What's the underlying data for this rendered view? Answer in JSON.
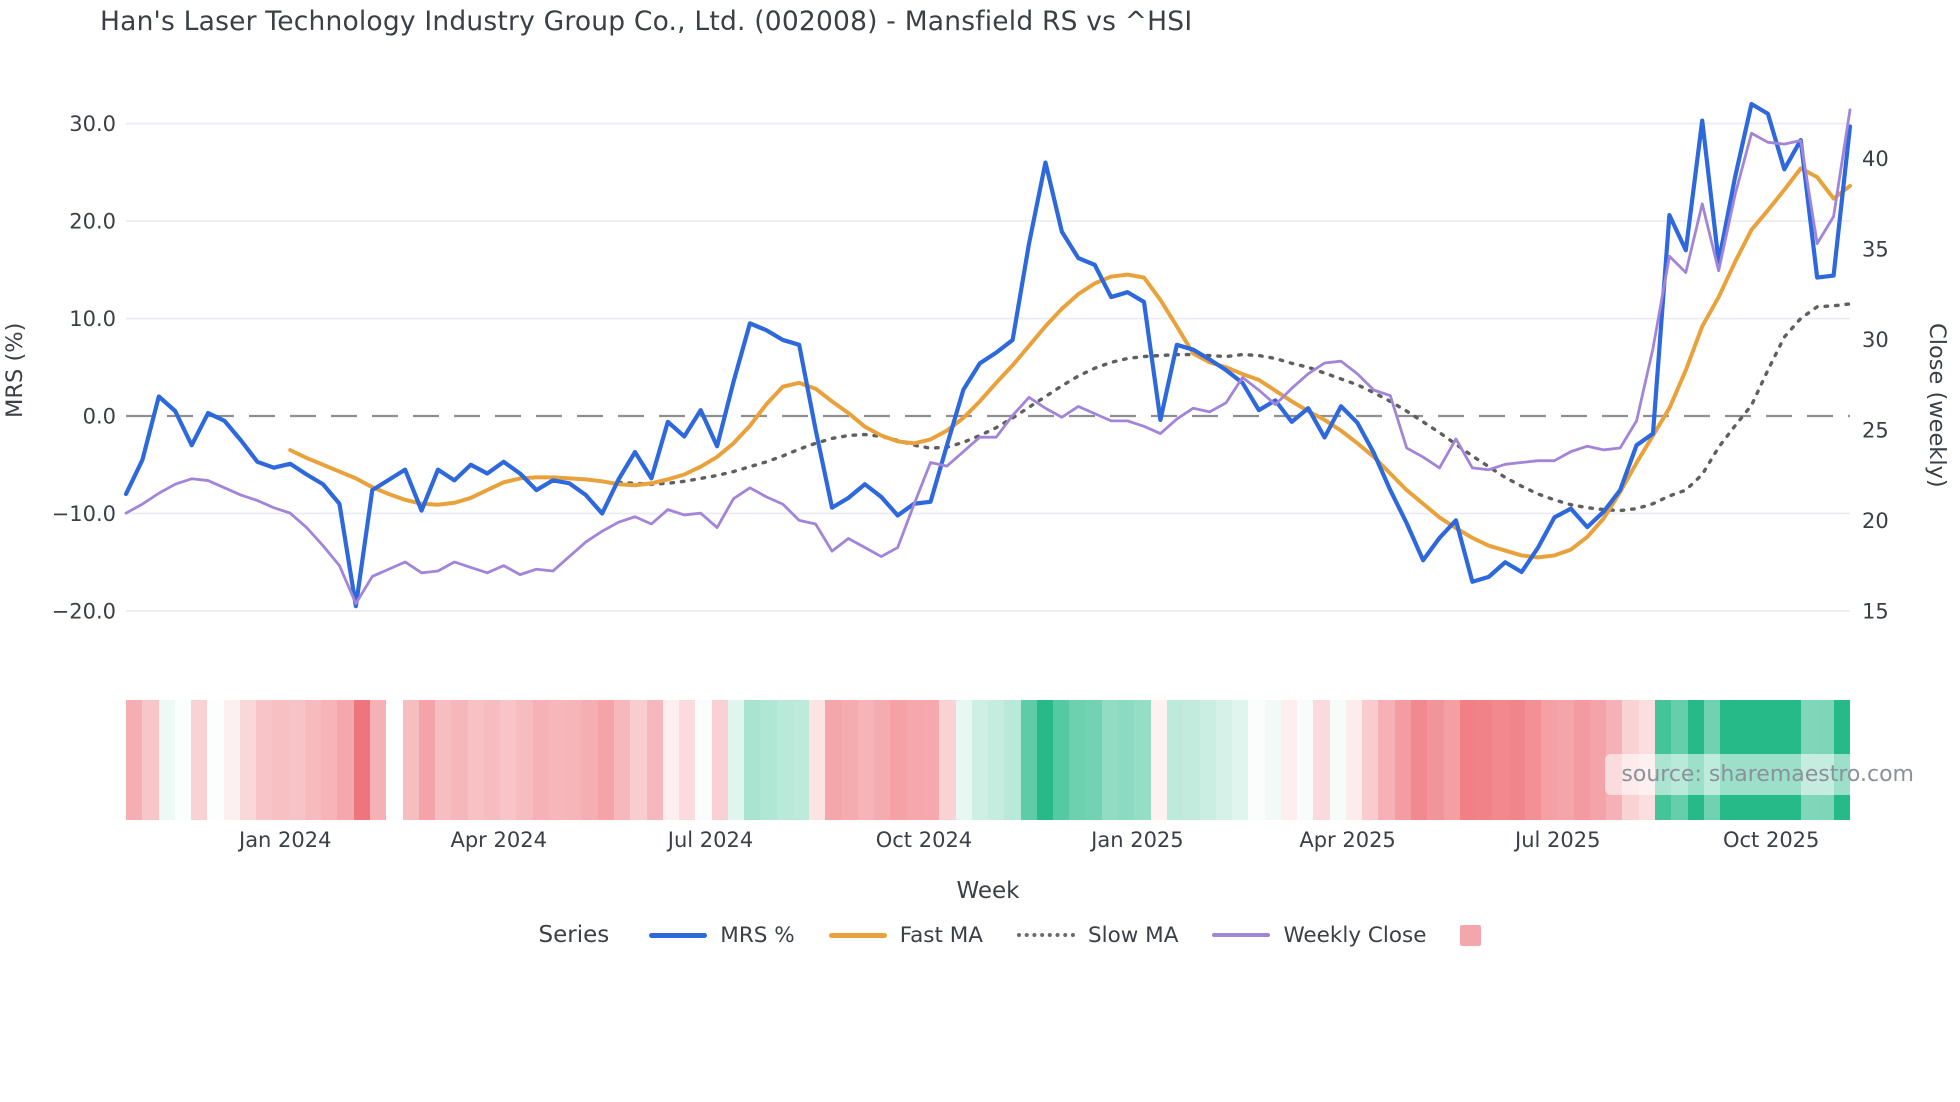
{
  "title": "Han's Laser Technology Industry Group Co., Ltd. (002008) - Mansfield RS vs ^HSI",
  "source": "source: sharemaestro.com",
  "legend": {
    "title": "Series",
    "entries": [
      {
        "label": "MRS %",
        "swatch": "line",
        "color": "#2d68dd",
        "thickness": 5
      },
      {
        "label": "Fast MA",
        "swatch": "line",
        "color": "#e9a23b",
        "thickness": 5
      },
      {
        "label": "Slow MA",
        "swatch": "dotted",
        "color": "#6b6b6b",
        "thickness": 4
      },
      {
        "label": "Weekly Close",
        "swatch": "line",
        "color": "#a284d8",
        "thickness": 3.5
      },
      {
        "label": "",
        "swatch": "square",
        "color": "#f3a6ab",
        "thickness": 0
      }
    ]
  },
  "chart_data": {
    "type": "line",
    "title": "Han's Laser Technology Industry Group Co., Ltd. (002008) - Mansfield RS vs ^HSI",
    "xlabel": "Week",
    "ylabel_left": "MRS (%)",
    "ylabel_right": "Close (weekly)",
    "n_weeks": 106,
    "x_tick_labels": [
      "Jan 2024",
      "Apr 2024",
      "Jul 2024",
      "Oct 2024",
      "Jan 2025",
      "Apr 2025",
      "Jul 2025",
      "Oct 2025"
    ],
    "x_tick_weeks": [
      9.7,
      22.7,
      35.6,
      48.6,
      61.6,
      74.4,
      87.2,
      100.2
    ],
    "left_ticks": [
      {
        "v": 30,
        "label": "30.0"
      },
      {
        "v": 20,
        "label": "20.0"
      },
      {
        "v": 10,
        "label": "10.0"
      },
      {
        "v": 0,
        "label": "0.0"
      },
      {
        "v": -10,
        "label": "−10.0"
      },
      {
        "v": -20,
        "label": "−20.0"
      }
    ],
    "right_ticks": [
      {
        "v": 40,
        "label": "40"
      },
      {
        "v": 35,
        "label": "35"
      },
      {
        "v": 30,
        "label": "30"
      },
      {
        "v": 25,
        "label": "25"
      },
      {
        "v": 20,
        "label": "20"
      },
      {
        "v": 15,
        "label": "15"
      }
    ],
    "ylim_left": [
      -23,
      33.5
    ],
    "right_axis_map": {
      "right_value_at_left_zero": 25.77,
      "right_units_per_left_unit": 0.539
    },
    "zero_line_left": 0,
    "grid": true,
    "legend_position": "bottom",
    "colors": {
      "grid": "#ebebf3",
      "zero_line": "#8f8f8f",
      "text": "#3a4045",
      "watermark": "#8b919a",
      "heat_positive": "#26ba89",
      "heat_negative": "#ee737a"
    },
    "series": [
      {
        "name": "MRS %",
        "axis": "left",
        "color": "#2d68dd",
        "style": "solid",
        "width": 4.2,
        "values": [
          -8,
          -4.5,
          2,
          0.5,
          -3,
          0.3,
          -0.5,
          -2.5,
          -4.7,
          -5.3,
          -4.9,
          -6,
          -7,
          -9,
          -19.5,
          -7.6,
          null,
          -5.5,
          -9.7,
          -5.5,
          -6.6,
          -5,
          -5.9,
          -4.7,
          -5.9,
          -7.6,
          -6.6,
          -6.9,
          -8.1,
          -10,
          -6.5,
          -3.7,
          -6.4,
          -0.6,
          -2.1,
          0.6,
          -3.1,
          3.5,
          9.5,
          8.8,
          7.8,
          7.3,
          -1.4,
          -9.4,
          -8.4,
          -7,
          -8.3,
          -10.2,
          -9,
          -8.8,
          -3,
          2.7,
          5.4,
          6.5,
          7.8,
          17.7,
          26,
          18.9,
          16.2,
          15.5,
          12.2,
          12.7,
          11.7,
          -0.4,
          7.3,
          6.8,
          5.8,
          4.7,
          3.4,
          0.6,
          1.6,
          -0.6,
          0.8,
          -2.2,
          1,
          -0.7,
          -3.8,
          -7.6,
          -11,
          -14.8,
          -12.5,
          -10.7,
          -17,
          -16.5,
          -15,
          -16,
          -13.5,
          -10.4,
          -9.5,
          -11.4,
          -9.8,
          -7.6,
          -3,
          -1.8,
          20.6,
          17,
          30.3,
          15.8,
          24.5,
          32,
          31,
          25.3,
          28.3,
          14.2,
          14.4,
          29.7
        ]
      },
      {
        "name": "Fast MA",
        "axis": "left",
        "color": "#e9a23b",
        "style": "solid",
        "width": 4,
        "values": [
          null,
          null,
          null,
          null,
          null,
          null,
          null,
          null,
          null,
          null,
          -3.5,
          -4.3,
          -5,
          -5.7,
          -6.4,
          -7.3,
          -8,
          -8.6,
          -9,
          -9.1,
          -8.9,
          -8.4,
          -7.6,
          -6.8,
          -6.4,
          -6.3,
          -6.3,
          -6.4,
          -6.5,
          -6.7,
          -7,
          -7.1,
          -6.9,
          -6.5,
          -6,
          -5.2,
          -4.2,
          -2.8,
          -1,
          1.2,
          3,
          3.4,
          2.8,
          1.5,
          0.3,
          -1.1,
          -2,
          -2.6,
          -2.8,
          -2.4,
          -1.5,
          -0.2,
          1.5,
          3.4,
          5.2,
          7.2,
          9.2,
          11,
          12.5,
          13.6,
          14.3,
          14.5,
          14.2,
          11.9,
          9.2,
          6.4,
          5.5,
          5,
          4.3,
          3.7,
          2.6,
          1.5,
          0.5,
          -0.4,
          -1.5,
          -2.8,
          -4.2,
          -5.9,
          -7.6,
          -9,
          -10.4,
          -11.5,
          -12.5,
          -13.3,
          -13.8,
          -14.3,
          -14.5,
          -14.3,
          -13.7,
          -12.4,
          -10.5,
          -7.8,
          -4.8,
          -2,
          0.8,
          4.7,
          9.2,
          12.2,
          15.8,
          19.1,
          21.1,
          23.2,
          25.4,
          24.5,
          22.3,
          23.6
        ]
      },
      {
        "name": "Slow MA",
        "axis": "left",
        "color": "#5f5f5f",
        "style": "dotted",
        "width": 3.4,
        "values": [
          null,
          null,
          null,
          null,
          null,
          null,
          null,
          null,
          null,
          null,
          null,
          null,
          null,
          null,
          null,
          null,
          null,
          null,
          null,
          null,
          null,
          null,
          null,
          null,
          null,
          null,
          null,
          null,
          null,
          null,
          -6.8,
          -6.9,
          -7,
          -6.9,
          -6.7,
          -6.4,
          -6.1,
          -5.7,
          -5.2,
          -4.7,
          -4.1,
          -3.4,
          -2.8,
          -2.3,
          -2,
          -1.9,
          -2.1,
          -2.5,
          -3,
          -3.3,
          -3.2,
          -2.7,
          -2,
          -1.2,
          -0.2,
          0.9,
          2,
          3.1,
          4.1,
          4.9,
          5.5,
          5.9,
          6.1,
          6.2,
          6.3,
          6.3,
          6.2,
          6.1,
          6.3,
          6.2,
          5.9,
          5.4,
          5,
          4.4,
          3.8,
          3.2,
          2.4,
          1.5,
          0.5,
          -0.6,
          -1.7,
          -2.9,
          -4.1,
          -5.2,
          -6.3,
          -7.2,
          -8,
          -8.6,
          -9.1,
          -9.4,
          -9.6,
          -9.7,
          -9.5,
          -9,
          -8.2,
          -7.6,
          -6,
          -3.2,
          -1,
          1.1,
          4.7,
          8.1,
          10,
          11.2,
          11.3,
          11.5
        ]
      },
      {
        "name": "Weekly Close",
        "axis": "right",
        "color": "#a284d8",
        "style": "solid",
        "width": 2.8,
        "values": [
          20.4,
          20.9,
          21.5,
          22,
          22.3,
          22.2,
          21.8,
          21.4,
          21.1,
          20.7,
          20.4,
          19.6,
          18.6,
          17.5,
          15.4,
          16.9,
          null,
          17.7,
          17.1,
          17.2,
          17.7,
          17.4,
          17.1,
          17.5,
          17,
          17.3,
          17.2,
          18,
          18.8,
          19.4,
          19.9,
          20.2,
          19.8,
          20.6,
          20.3,
          20.4,
          19.6,
          21.2,
          21.8,
          21.3,
          20.9,
          20,
          19.8,
          18.3,
          19,
          18.5,
          18,
          18.5,
          20.9,
          23.2,
          23,
          23.8,
          24.6,
          24.6,
          25.8,
          26.8,
          26.2,
          25.7,
          26.3,
          25.9,
          25.5,
          25.5,
          25.2,
          24.8,
          25.6,
          26.2,
          26,
          26.5,
          27.9,
          27.2,
          26.4,
          27.3,
          28.1,
          28.7,
          28.8,
          28.1,
          27.2,
          26.9,
          24,
          23.5,
          22.9,
          24.5,
          22.9,
          22.8,
          23.1,
          23.2,
          23.3,
          23.3,
          23.8,
          24.1,
          23.9,
          24,
          25.5,
          29.5,
          34.6,
          33.7,
          37.5,
          33.8,
          38,
          41.4,
          40.9,
          40.8,
          41,
          35.3,
          36.8,
          42.7
        ]
      }
    ],
    "heatmap": {
      "encodes": "MRS % sign and magnitude (red negative, green positive)",
      "from_series": "MRS %",
      "missing_weeks": [
        16
      ]
    }
  }
}
